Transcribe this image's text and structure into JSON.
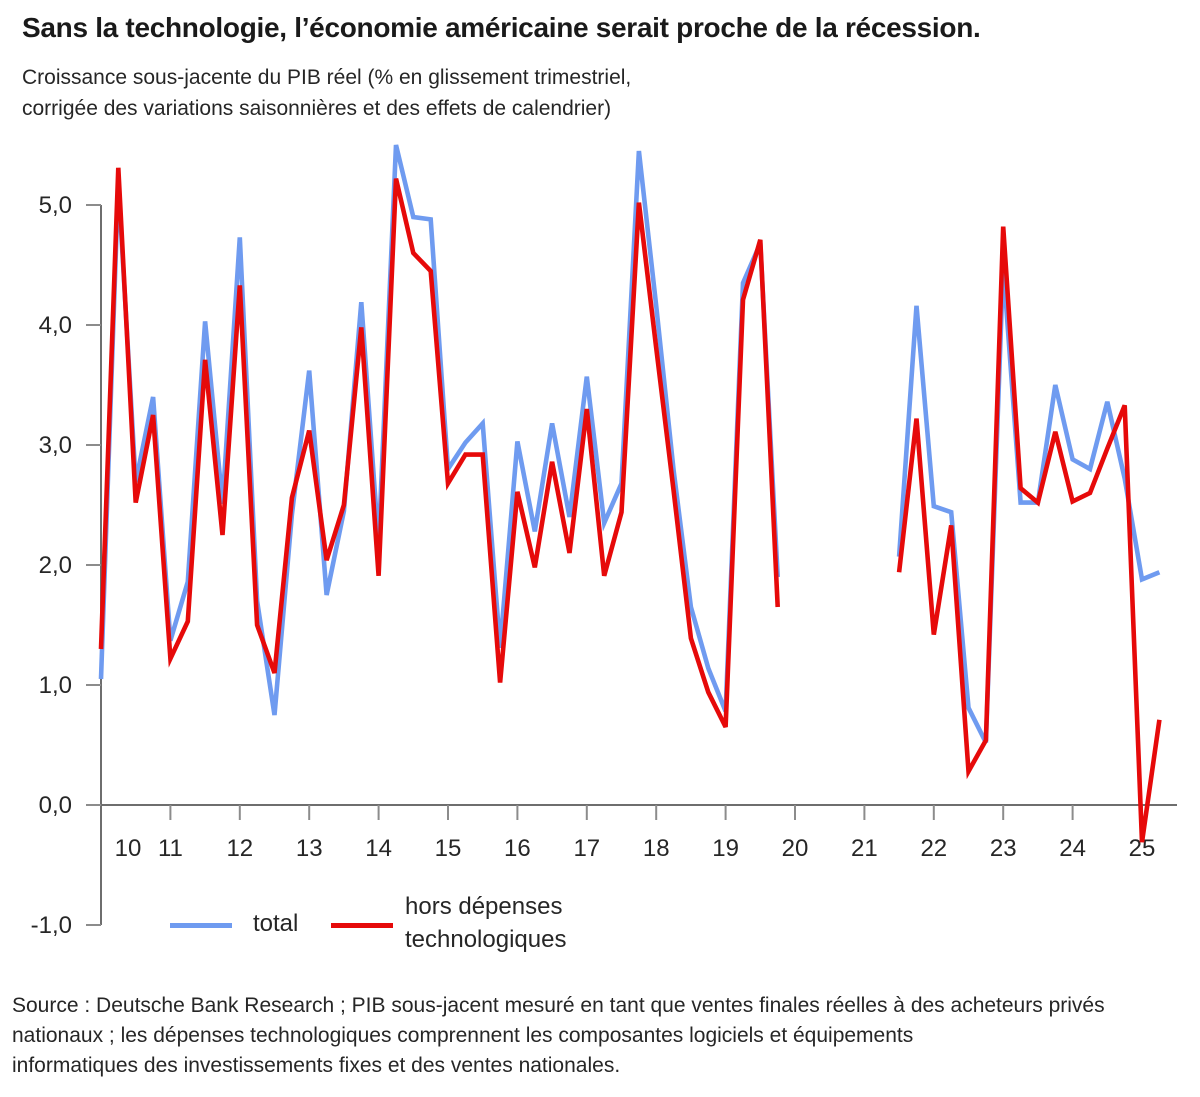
{
  "title": "Sans la technologie, l’économie américaine serait proche de la récession.",
  "subtitle": {
    "line1": "Croissance sous-jacente du PIB réel (% en glissement trimestriel,",
    "line2": "corrigée des variations saisonnières et des effets de calendrier)"
  },
  "legend": {
    "total_label": "total",
    "ex_tech_label_line1": "hors dépenses",
    "ex_tech_label_line2": "technologiques"
  },
  "source": {
    "line1": "Source : Deutsche Bank Research ; PIB sous-jacent mesuré en tant que ventes finales réelles à des acheteurs privés",
    "line2": "nationaux ; les dépenses technologiques comprennent les composantes logiciels et équipements",
    "line3": "informatiques des investissements fixes et des ventes nationales."
  },
  "colors": {
    "total": "#6f9bf0",
    "ex_tech": "#e60a0a",
    "axis": "#6e6e6e",
    "tick": "#8c8c8c",
    "text": "#262626"
  },
  "chart_data": {
    "type": "line",
    "title": "Sans la technologie, l’économie américaine serait proche de la récession.",
    "ylabel": "Croissance sous-jacente du PIB réel (% en glissement trimestriel, cvs-cjo)",
    "ylim": [
      -1.0,
      5.5
    ],
    "grid": false,
    "legend_position": "bottom",
    "frequency": "quarterly",
    "gap_note": "no data plotted 2020Q1-2021Q2",
    "y_ticks": [
      {
        "value": 5.0,
        "label": "5,0"
      },
      {
        "value": 4.0,
        "label": "4,0"
      },
      {
        "value": 3.0,
        "label": "3,0"
      },
      {
        "value": 2.0,
        "label": "2,0"
      },
      {
        "value": 1.0,
        "label": "1,0"
      },
      {
        "value": 0.0,
        "label": "0,0"
      },
      {
        "value": -1.0,
        "label": "-1,0"
      }
    ],
    "x_ticks": [
      {
        "year": 2010,
        "label": "10"
      },
      {
        "year": 2011,
        "label": "11"
      },
      {
        "year": 2012,
        "label": "12"
      },
      {
        "year": 2013,
        "label": "13"
      },
      {
        "year": 2014,
        "label": "14"
      },
      {
        "year": 2015,
        "label": "15"
      },
      {
        "year": 2016,
        "label": "16"
      },
      {
        "year": 2017,
        "label": "17"
      },
      {
        "year": 2018,
        "label": "18"
      },
      {
        "year": 2019,
        "label": "19"
      },
      {
        "year": 2020,
        "label": "20"
      },
      {
        "year": 2021,
        "label": "21"
      },
      {
        "year": 2022,
        "label": "22"
      },
      {
        "year": 2023,
        "label": "23"
      },
      {
        "year": 2024,
        "label": "24"
      },
      {
        "year": 2025,
        "label": "25"
      }
    ],
    "series": [
      {
        "name": "total",
        "color_key": "total",
        "segments": [
          {
            "start_year": 2010,
            "start_quarter": 1,
            "values": [
              1.05,
              5.19,
              2.69,
              3.4,
              1.37,
              1.86,
              4.03,
              2.51,
              4.73,
              1.7,
              0.75,
              2.42,
              3.62,
              1.75,
              2.45,
              4.19,
              2.17,
              5.5,
              4.9,
              4.88,
              2.8,
              3.02,
              3.18,
              1.31,
              3.03,
              2.28,
              3.18,
              2.4,
              3.57,
              2.35,
              2.68,
              5.45,
              4.16,
              2.79,
              1.65,
              1.14,
              0.78,
              4.35,
              4.68,
              1.9
            ]
          },
          {
            "start_year": 2021,
            "start_quarter": 3,
            "values": [
              2.07,
              4.16,
              2.49,
              2.44,
              0.81,
              0.52,
              4.5,
              2.52,
              2.52,
              3.5,
              2.88,
              2.8,
              3.36,
              2.72,
              1.88,
              1.94
            ]
          }
        ]
      },
      {
        "name": "hors dépenses technologiques",
        "color_key": "ex_tech",
        "segments": [
          {
            "start_year": 2010,
            "start_quarter": 1,
            "values": [
              1.3,
              5.31,
              2.52,
              3.25,
              1.22,
              1.53,
              3.71,
              2.25,
              4.33,
              1.5,
              1.1,
              2.56,
              3.12,
              2.04,
              2.5,
              3.98,
              1.91,
              5.22,
              4.6,
              4.45,
              2.68,
              2.92,
              2.92,
              1.02,
              2.61,
              1.98,
              2.86,
              2.1,
              3.3,
              1.91,
              2.44,
              5.02,
              3.81,
              2.62,
              1.39,
              0.94,
              0.65,
              4.21,
              4.71,
              1.65
            ]
          },
          {
            "start_year": 2021,
            "start_quarter": 3,
            "values": [
              1.94,
              3.22,
              1.42,
              2.33,
              0.28,
              0.54,
              4.82,
              2.64,
              2.52,
              3.11,
              2.53,
              2.6,
              2.97,
              3.33,
              -0.31,
              0.71
            ]
          }
        ]
      }
    ]
  }
}
